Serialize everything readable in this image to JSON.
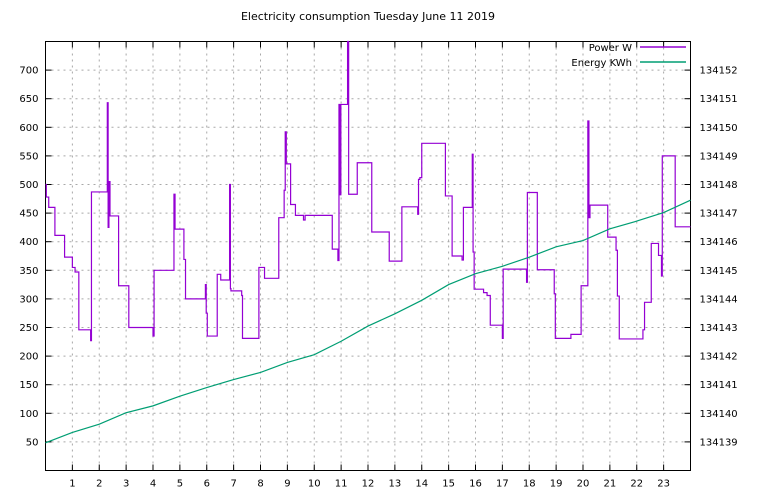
{
  "title": "Electricity consumption Tuesday June 11 2019",
  "legend": {
    "entries": [
      {
        "label": "Power W",
        "color": "#9400d3"
      },
      {
        "label": "Energy KWh",
        "color": "#009e73"
      }
    ],
    "position": "top-right"
  },
  "colors": {
    "power": "#9400d3",
    "energy": "#009e73",
    "grid": "#a8a8a8",
    "border": "#000000",
    "text": "#000000",
    "background": "#ffffff"
  },
  "chart_data": {
    "type": "line",
    "title": "Electricity consumption Tuesday June 11 2019",
    "grid": true,
    "legend_position": "top-right",
    "x_axis": {
      "unit": "hour of day",
      "range": [
        0,
        24
      ],
      "ticks": [
        1,
        2,
        3,
        4,
        5,
        6,
        7,
        8,
        9,
        10,
        11,
        12,
        13,
        14,
        15,
        16,
        17,
        18,
        19,
        20,
        21,
        22,
        23
      ]
    },
    "y_left": {
      "series": "Power W",
      "range": [
        0,
        750
      ],
      "ticks": [
        50,
        100,
        150,
        200,
        250,
        300,
        350,
        400,
        450,
        500,
        550,
        600,
        650,
        700
      ]
    },
    "y_right": {
      "series": "Energy KWh",
      "range": [
        134138,
        134153
      ],
      "ticks": [
        134139,
        134140,
        134141,
        134142,
        134143,
        134144,
        134145,
        134146,
        134147,
        134148,
        134149,
        134150,
        134151,
        134152
      ]
    },
    "series": [
      {
        "name": "Power W",
        "style": "step",
        "axis": "left",
        "color": "#9400d3",
        "points": [
          [
            0,
            500
          ],
          [
            0.03,
            478
          ],
          [
            0.12,
            460
          ],
          [
            0.35,
            411
          ],
          [
            0.71,
            373
          ],
          [
            1.0,
            355
          ],
          [
            1.1,
            347
          ],
          [
            1.24,
            246
          ],
          [
            1.68,
            227
          ],
          [
            1.71,
            487
          ],
          [
            2.3,
            643
          ],
          [
            2.33,
            425
          ],
          [
            2.36,
            505
          ],
          [
            2.4,
            445
          ],
          [
            2.72,
            323
          ],
          [
            3.1,
            250
          ],
          [
            4.0,
            235
          ],
          [
            4.04,
            350
          ],
          [
            4.78,
            483
          ],
          [
            4.82,
            422
          ],
          [
            5.15,
            369
          ],
          [
            5.21,
            300
          ],
          [
            5.95,
            325
          ],
          [
            5.98,
            275
          ],
          [
            6.02,
            235
          ],
          [
            6.39,
            343
          ],
          [
            6.52,
            333
          ],
          [
            6.85,
            500
          ],
          [
            6.88,
            318
          ],
          [
            6.9,
            314
          ],
          [
            7.3,
            306
          ],
          [
            7.33,
            231
          ],
          [
            7.94,
            355
          ],
          [
            8.15,
            336
          ],
          [
            8.68,
            442
          ],
          [
            8.88,
            490
          ],
          [
            8.92,
            592
          ],
          [
            8.96,
            536
          ],
          [
            9.12,
            465
          ],
          [
            9.3,
            446
          ],
          [
            9.6,
            438
          ],
          [
            9.66,
            446
          ],
          [
            10.67,
            387
          ],
          [
            10.88,
            367
          ],
          [
            10.92,
            640
          ],
          [
            10.95,
            482
          ],
          [
            10.99,
            640
          ],
          [
            11.24,
            750
          ],
          [
            11.28,
            483
          ],
          [
            11.6,
            538
          ],
          [
            12.14,
            417
          ],
          [
            12.79,
            366
          ],
          [
            13.26,
            461
          ],
          [
            13.85,
            448
          ],
          [
            13.88,
            509
          ],
          [
            13.93,
            512
          ],
          [
            14.0,
            572
          ],
          [
            14.88,
            480
          ],
          [
            15.13,
            375
          ],
          [
            15.5,
            368
          ],
          [
            15.55,
            460
          ],
          [
            15.88,
            553
          ],
          [
            15.91,
            382
          ],
          [
            15.95,
            317
          ],
          [
            16.3,
            311
          ],
          [
            16.43,
            306
          ],
          [
            16.55,
            254
          ],
          [
            17.0,
            231
          ],
          [
            17.03,
            352
          ],
          [
            17.9,
            329
          ],
          [
            17.93,
            486
          ],
          [
            18.3,
            351
          ],
          [
            18.93,
            309
          ],
          [
            18.97,
            231
          ],
          [
            19.55,
            238
          ],
          [
            19.93,
            323
          ],
          [
            20.18,
            611
          ],
          [
            20.22,
            442
          ],
          [
            20.26,
            464
          ],
          [
            20.92,
            408
          ],
          [
            21.23,
            385
          ],
          [
            21.28,
            305
          ],
          [
            21.35,
            230
          ],
          [
            22.23,
            246
          ],
          [
            22.29,
            294
          ],
          [
            22.54,
            397
          ],
          [
            22.81,
            376
          ],
          [
            22.92,
            340
          ],
          [
            22.95,
            550
          ],
          [
            23.43,
            426
          ],
          [
            24,
            426
          ]
        ]
      },
      {
        "name": "Energy KWh",
        "style": "line",
        "axis": "right",
        "color": "#009e73",
        "points": [
          [
            0,
            134138.97
          ],
          [
            1,
            134139.33
          ],
          [
            2,
            134139.62
          ],
          [
            3,
            134140.02
          ],
          [
            4,
            134140.26
          ],
          [
            5,
            134140.6
          ],
          [
            6,
            134140.9
          ],
          [
            7,
            134141.18
          ],
          [
            8,
            134141.43
          ],
          [
            9,
            134141.78
          ],
          [
            10,
            134142.05
          ],
          [
            11,
            134142.52
          ],
          [
            12,
            134143.05
          ],
          [
            13,
            134143.48
          ],
          [
            14,
            134143.95
          ],
          [
            15,
            134144.5
          ],
          [
            16,
            134144.88
          ],
          [
            17,
            134145.14
          ],
          [
            18,
            134145.46
          ],
          [
            19,
            134145.82
          ],
          [
            20,
            134146.04
          ],
          [
            21,
            134146.45
          ],
          [
            22,
            134146.72
          ],
          [
            23,
            134147.02
          ],
          [
            24,
            134147.45
          ]
        ]
      }
    ]
  }
}
